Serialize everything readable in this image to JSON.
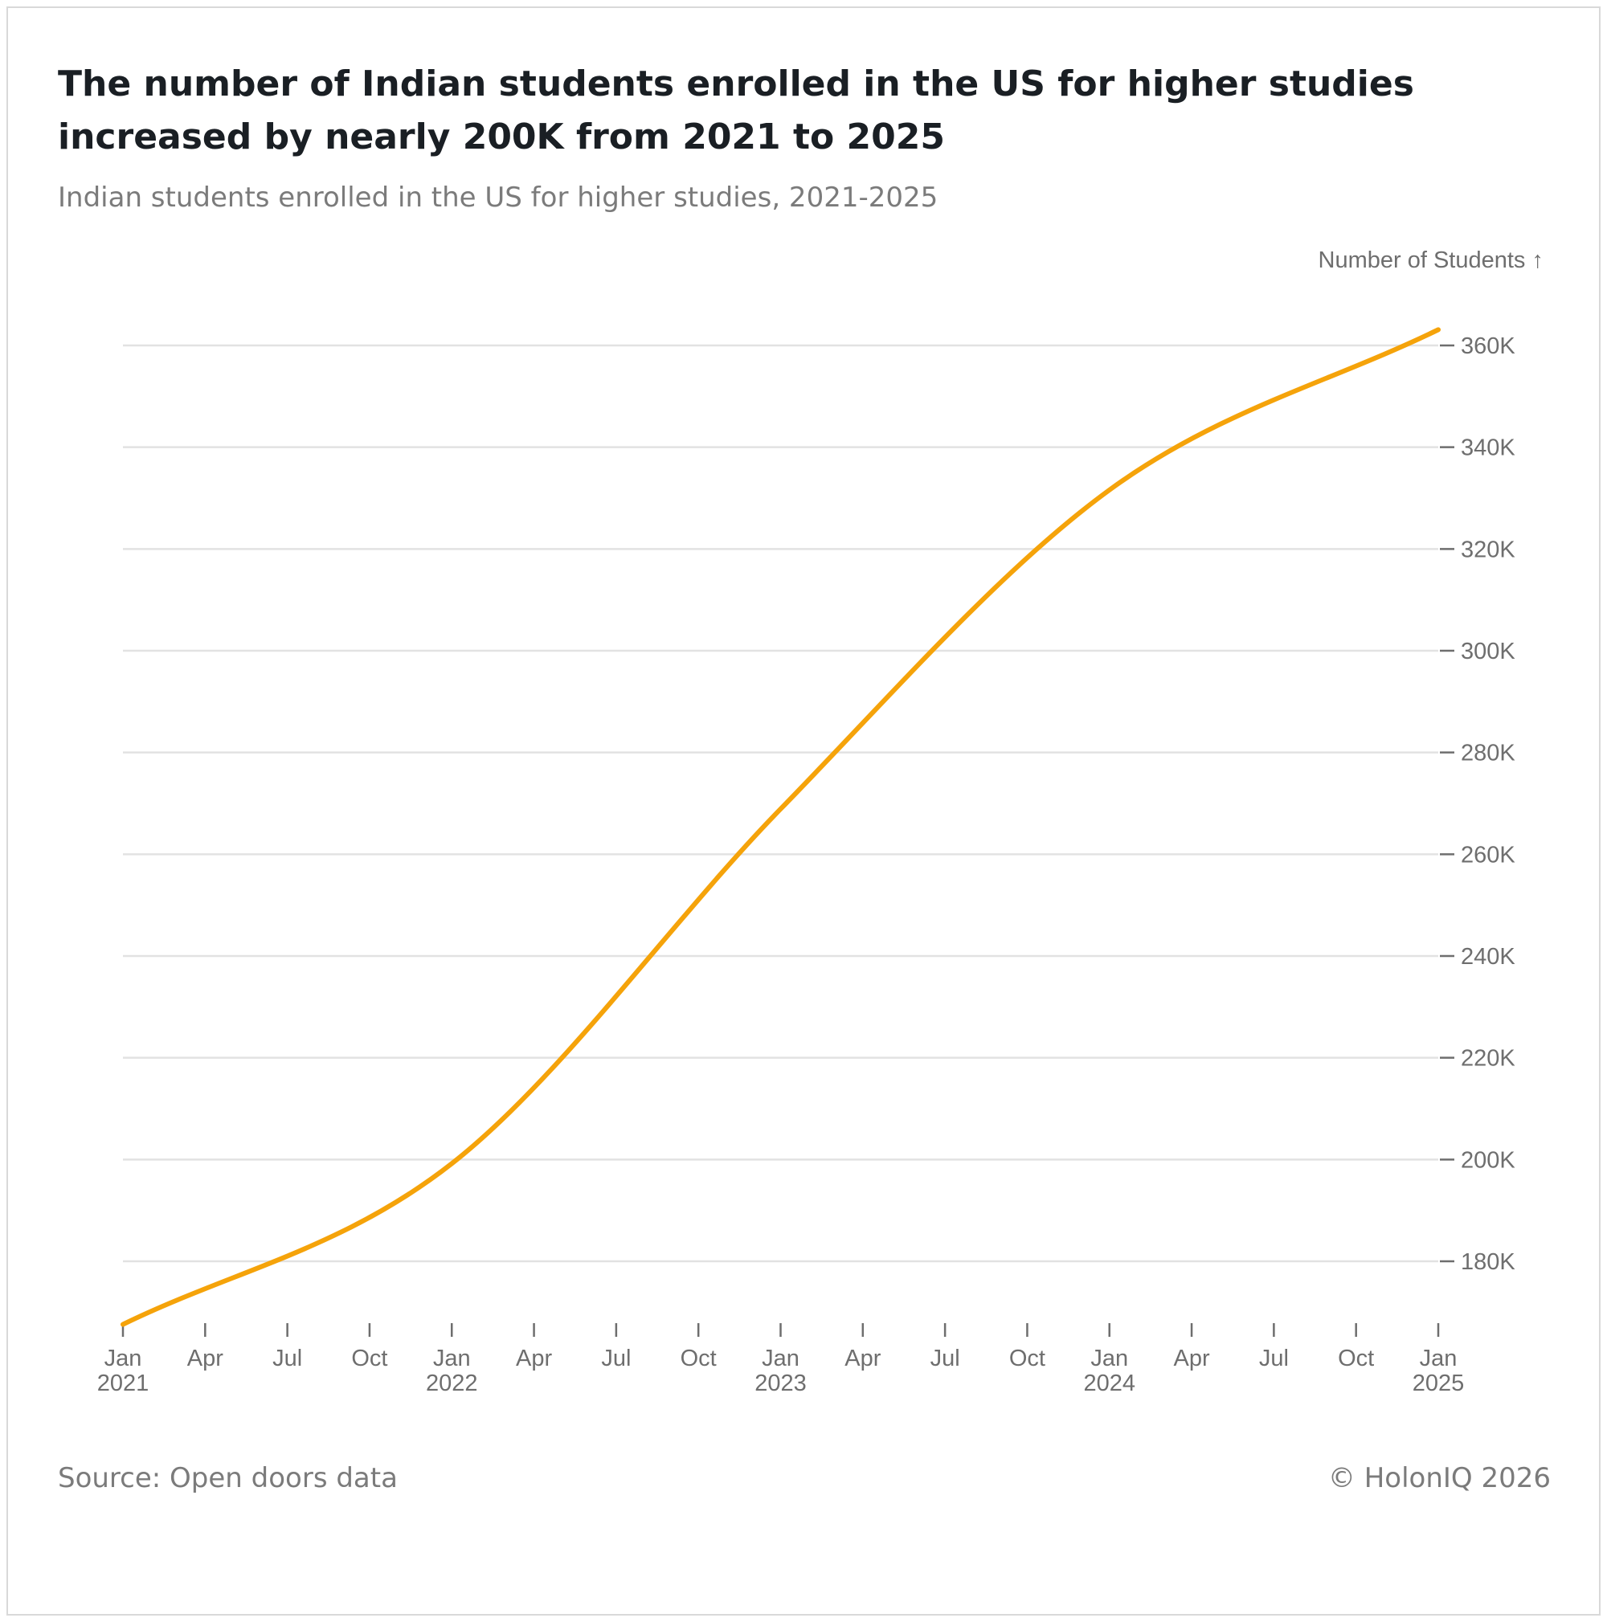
{
  "header": {
    "title": "The number of Indian students enrolled in the US for higher studies increased by nearly 200K from 2021 to 2025",
    "subtitle": "Indian students enrolled in the US for higher studies, 2021-2025"
  },
  "footer": {
    "source": "Source: Open doors data",
    "copyright": "© HolonIQ 2026"
  },
  "colors": {
    "line": "#f5a30a",
    "grid": "#e2e2e2",
    "axis_text": "#6e6e6e"
  },
  "chart_data": {
    "type": "line",
    "title": "The number of Indian students enrolled in the US for higher studies increased by nearly 200K from 2021 to 2025",
    "subtitle": "Indian students enrolled in the US for higher studies, 2021-2025",
    "ylabel": "Number of Students ↑",
    "xlabel": "",
    "ylim": [
      168000,
      363000
    ],
    "yticks": [
      {
        "value": 180000,
        "label": "180K"
      },
      {
        "value": 200000,
        "label": "200K"
      },
      {
        "value": 220000,
        "label": "220K"
      },
      {
        "value": 240000,
        "label": "240K"
      },
      {
        "value": 260000,
        "label": "260K"
      },
      {
        "value": 280000,
        "label": "280K"
      },
      {
        "value": 300000,
        "label": "300K"
      },
      {
        "value": 320000,
        "label": "320K"
      },
      {
        "value": 340000,
        "label": "340K"
      },
      {
        "value": 360000,
        "label": "360K"
      }
    ],
    "xlim": [
      0,
      48
    ],
    "xticks": [
      {
        "month_index": 0,
        "label": "Jan",
        "year": "2021"
      },
      {
        "month_index": 3,
        "label": "Apr",
        "year": ""
      },
      {
        "month_index": 6,
        "label": "Jul",
        "year": ""
      },
      {
        "month_index": 9,
        "label": "Oct",
        "year": ""
      },
      {
        "month_index": 12,
        "label": "Jan",
        "year": "2022"
      },
      {
        "month_index": 15,
        "label": "Apr",
        "year": ""
      },
      {
        "month_index": 18,
        "label": "Jul",
        "year": ""
      },
      {
        "month_index": 21,
        "label": "Oct",
        "year": ""
      },
      {
        "month_index": 24,
        "label": "Jan",
        "year": "2023"
      },
      {
        "month_index": 27,
        "label": "Apr",
        "year": ""
      },
      {
        "month_index": 30,
        "label": "Jul",
        "year": ""
      },
      {
        "month_index": 33,
        "label": "Oct",
        "year": ""
      },
      {
        "month_index": 36,
        "label": "Jan",
        "year": "2024"
      },
      {
        "month_index": 39,
        "label": "Apr",
        "year": ""
      },
      {
        "month_index": 42,
        "label": "Jul",
        "year": ""
      },
      {
        "month_index": 45,
        "label": "Oct",
        "year": ""
      },
      {
        "month_index": 48,
        "label": "Jan",
        "year": "2025"
      }
    ],
    "series": [
      {
        "name": "Indian students enrolled in the US",
        "points": [
          {
            "x": 0,
            "date": "Jan 2021",
            "value": 167600
          },
          {
            "x": 12,
            "date": "Jan 2022",
            "value": 199200
          },
          {
            "x": 24,
            "date": "Jan 2023",
            "value": 268900
          },
          {
            "x": 36,
            "date": "Jan 2024",
            "value": 331600
          },
          {
            "x": 48,
            "date": "Jan 2025",
            "value": 363100
          }
        ]
      }
    ]
  }
}
